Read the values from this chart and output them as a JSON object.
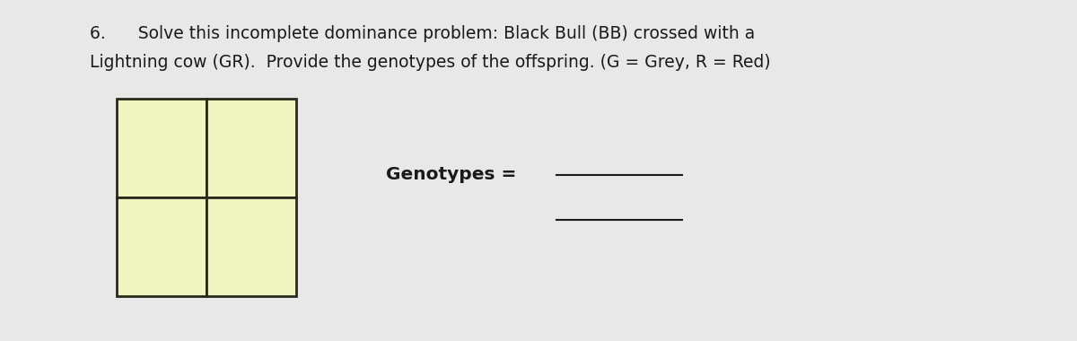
{
  "background_color": "#e8e8e8",
  "title_line1": "6.      Solve this incomplete dominance problem: Black Bull (BB) crossed with a",
  "title_line2": "Lightning cow (GR).  Provide the genotypes of the offspring. (G = Grey, R = Red)",
  "cell_color": "#f0f5c0",
  "cell_edge_color": "#2a2a1a",
  "genotypes_label": "Genotypes = ",
  "font_size_title": 13.5,
  "font_size_label": 14.5,
  "text_color": "#1a1a1a"
}
